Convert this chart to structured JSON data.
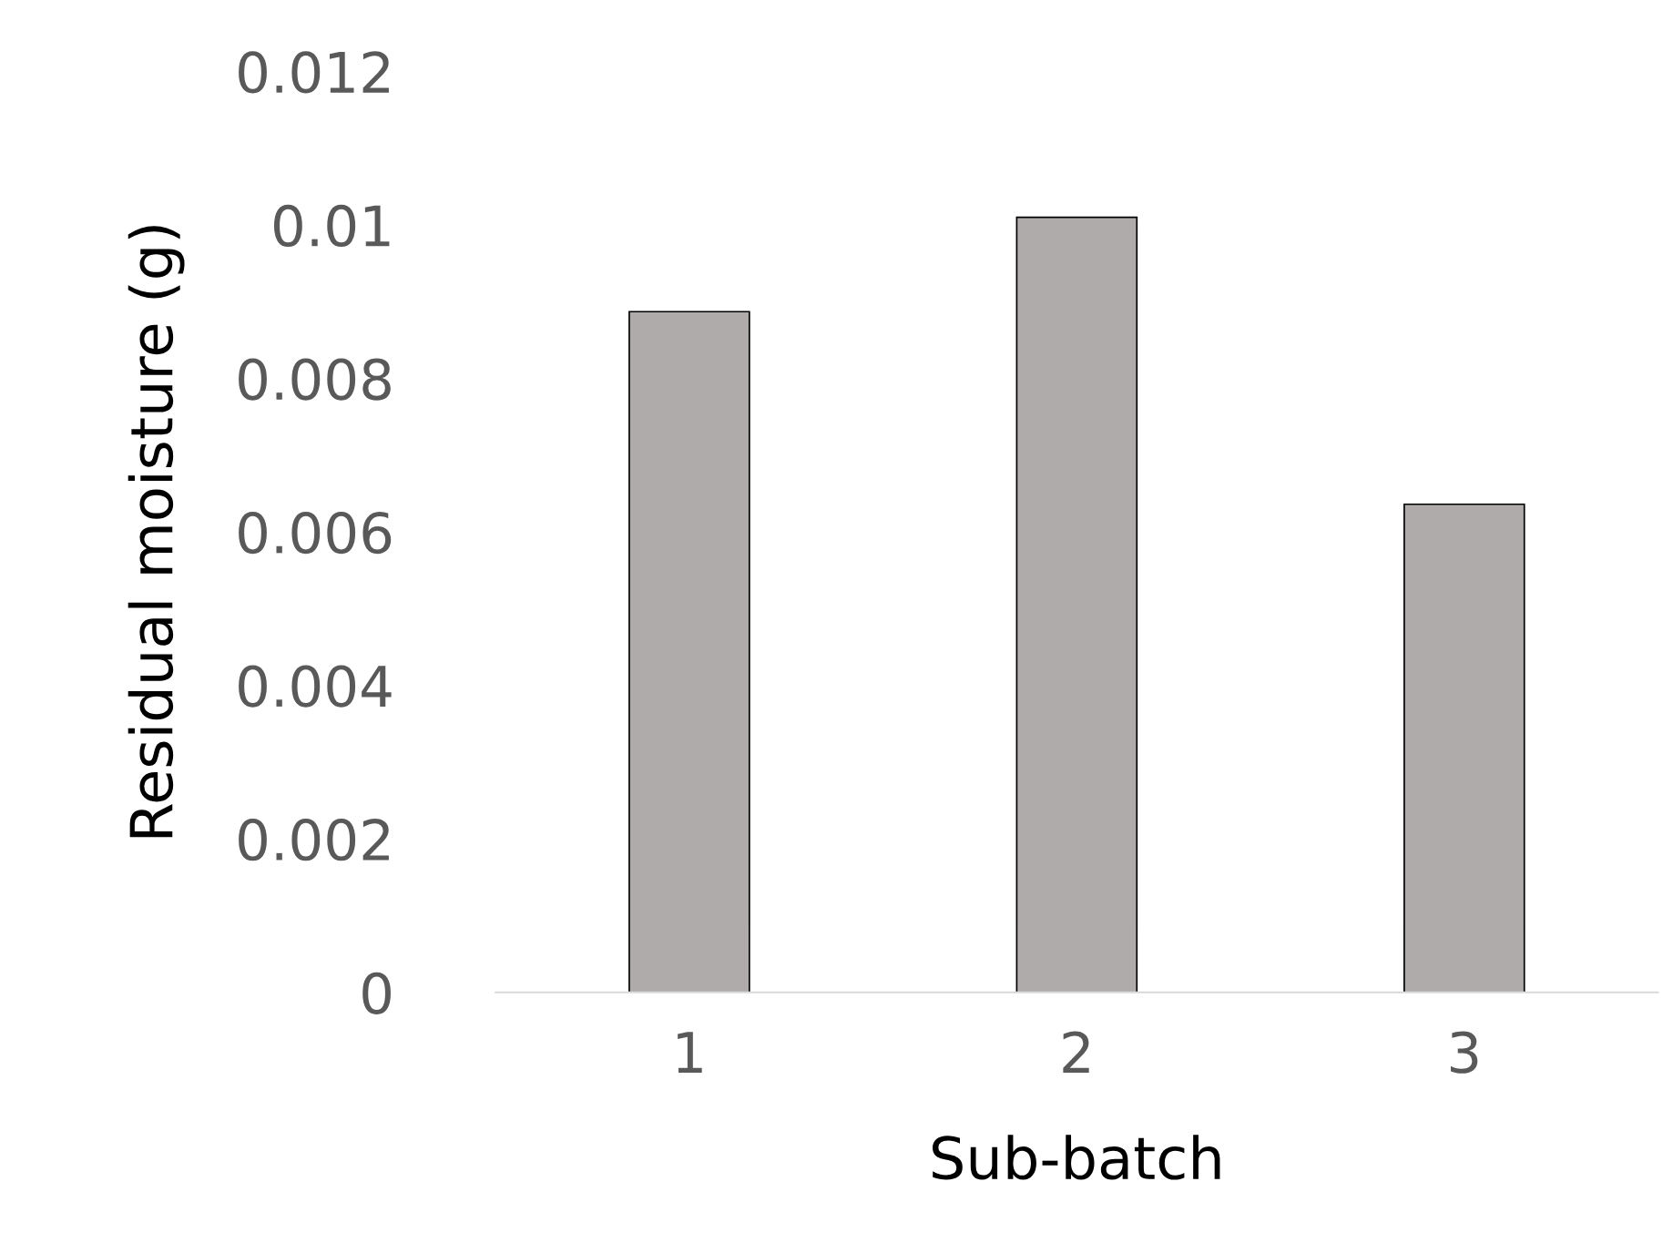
{
  "chart_data": {
    "type": "bar",
    "xlabel": "Sub-batch",
    "ylabel": "Residual moisture (g)",
    "categories": [
      "1",
      "2",
      "3"
    ],
    "values": [
      0.00887,
      0.0101,
      0.00636
    ],
    "color": "#afabab",
    "ylim": [
      0,
      0.012
    ],
    "yticks": [
      0,
      0.002,
      0.004,
      0.006,
      0.008,
      {
        "value": 0.01,
        "label": "0.01"
      },
      0.012
    ],
    "grid": false
  }
}
